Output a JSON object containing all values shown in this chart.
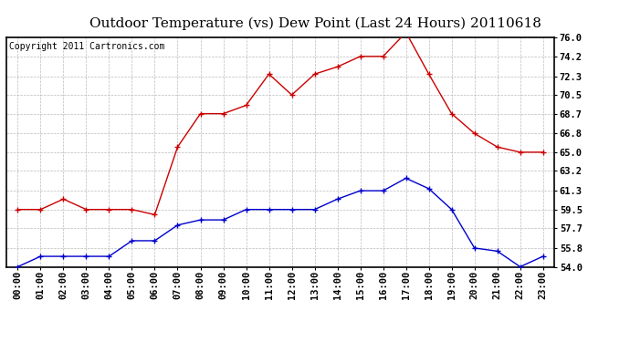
{
  "title": "Outdoor Temperature (vs) Dew Point (Last 24 Hours) 20110618",
  "copyright_text": "Copyright 2011 Cartronics.com",
  "x_labels": [
    "00:00",
    "01:00",
    "02:00",
    "03:00",
    "04:00",
    "05:00",
    "06:00",
    "07:00",
    "08:00",
    "09:00",
    "10:00",
    "11:00",
    "12:00",
    "13:00",
    "14:00",
    "15:00",
    "16:00",
    "17:00",
    "18:00",
    "19:00",
    "20:00",
    "21:00",
    "22:00",
    "23:00"
  ],
  "temp_data": [
    59.5,
    59.5,
    60.5,
    59.5,
    59.5,
    59.5,
    59.0,
    65.5,
    68.7,
    68.7,
    69.5,
    72.5,
    70.5,
    72.5,
    73.2,
    74.2,
    74.2,
    76.5,
    72.5,
    68.7,
    66.8,
    65.5,
    65.0,
    65.0
  ],
  "dew_data": [
    54.0,
    55.0,
    55.0,
    55.0,
    55.0,
    56.5,
    56.5,
    58.0,
    58.5,
    58.5,
    59.5,
    59.5,
    59.5,
    59.5,
    60.5,
    61.3,
    61.3,
    62.5,
    61.5,
    59.5,
    55.8,
    55.5,
    54.0,
    55.0
  ],
  "temp_color": "#cc0000",
  "dew_color": "#0000cc",
  "ylim_min": 54.0,
  "ylim_max": 76.0,
  "yticks": [
    54.0,
    55.8,
    57.7,
    59.5,
    61.3,
    63.2,
    65.0,
    66.8,
    68.7,
    70.5,
    72.3,
    74.2,
    76.0
  ],
  "background_color": "#ffffff",
  "plot_bg_color": "#ffffff",
  "grid_color": "#bbbbbb",
  "title_fontsize": 11,
  "tick_fontsize": 7.5,
  "copyright_fontsize": 7
}
